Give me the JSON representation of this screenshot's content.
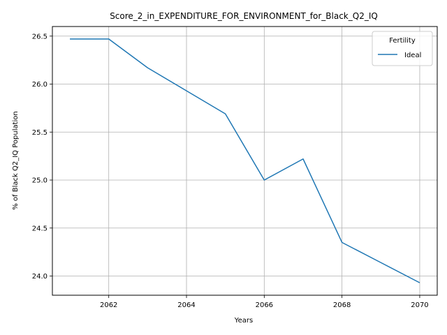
{
  "chart_data": {
    "type": "line",
    "title": "Score_2_in_EXPENDITURE_FOR_ENVIRONMENT_for_Black_Q2_IQ",
    "xlabel": "Years",
    "ylabel": "% of Black Q2_IQ Population",
    "xlim": [
      2060.55,
      2070.45
    ],
    "ylim": [
      23.8,
      26.6
    ],
    "x_ticks": [
      2062,
      2064,
      2066,
      2068,
      2070
    ],
    "y_ticks": [
      24.0,
      24.5,
      25.0,
      25.5,
      26.0,
      26.5
    ],
    "x_tick_labels": [
      "2062",
      "2064",
      "2066",
      "2068",
      "2070"
    ],
    "y_tick_labels": [
      "24.0",
      "24.5",
      "25.0",
      "25.5",
      "26.0",
      "26.5"
    ],
    "grid": true,
    "legend": {
      "title": "Fertility",
      "position": "top-right"
    },
    "series": [
      {
        "name": "Ideal",
        "color": "#1f77b4",
        "x": [
          2061,
          2062,
          2063,
          2064,
          2065,
          2066,
          2067,
          2068,
          2069,
          2070
        ],
        "y": [
          26.47,
          26.47,
          26.17,
          25.93,
          25.69,
          25.0,
          25.22,
          24.35,
          24.14,
          23.93
        ]
      }
    ]
  }
}
